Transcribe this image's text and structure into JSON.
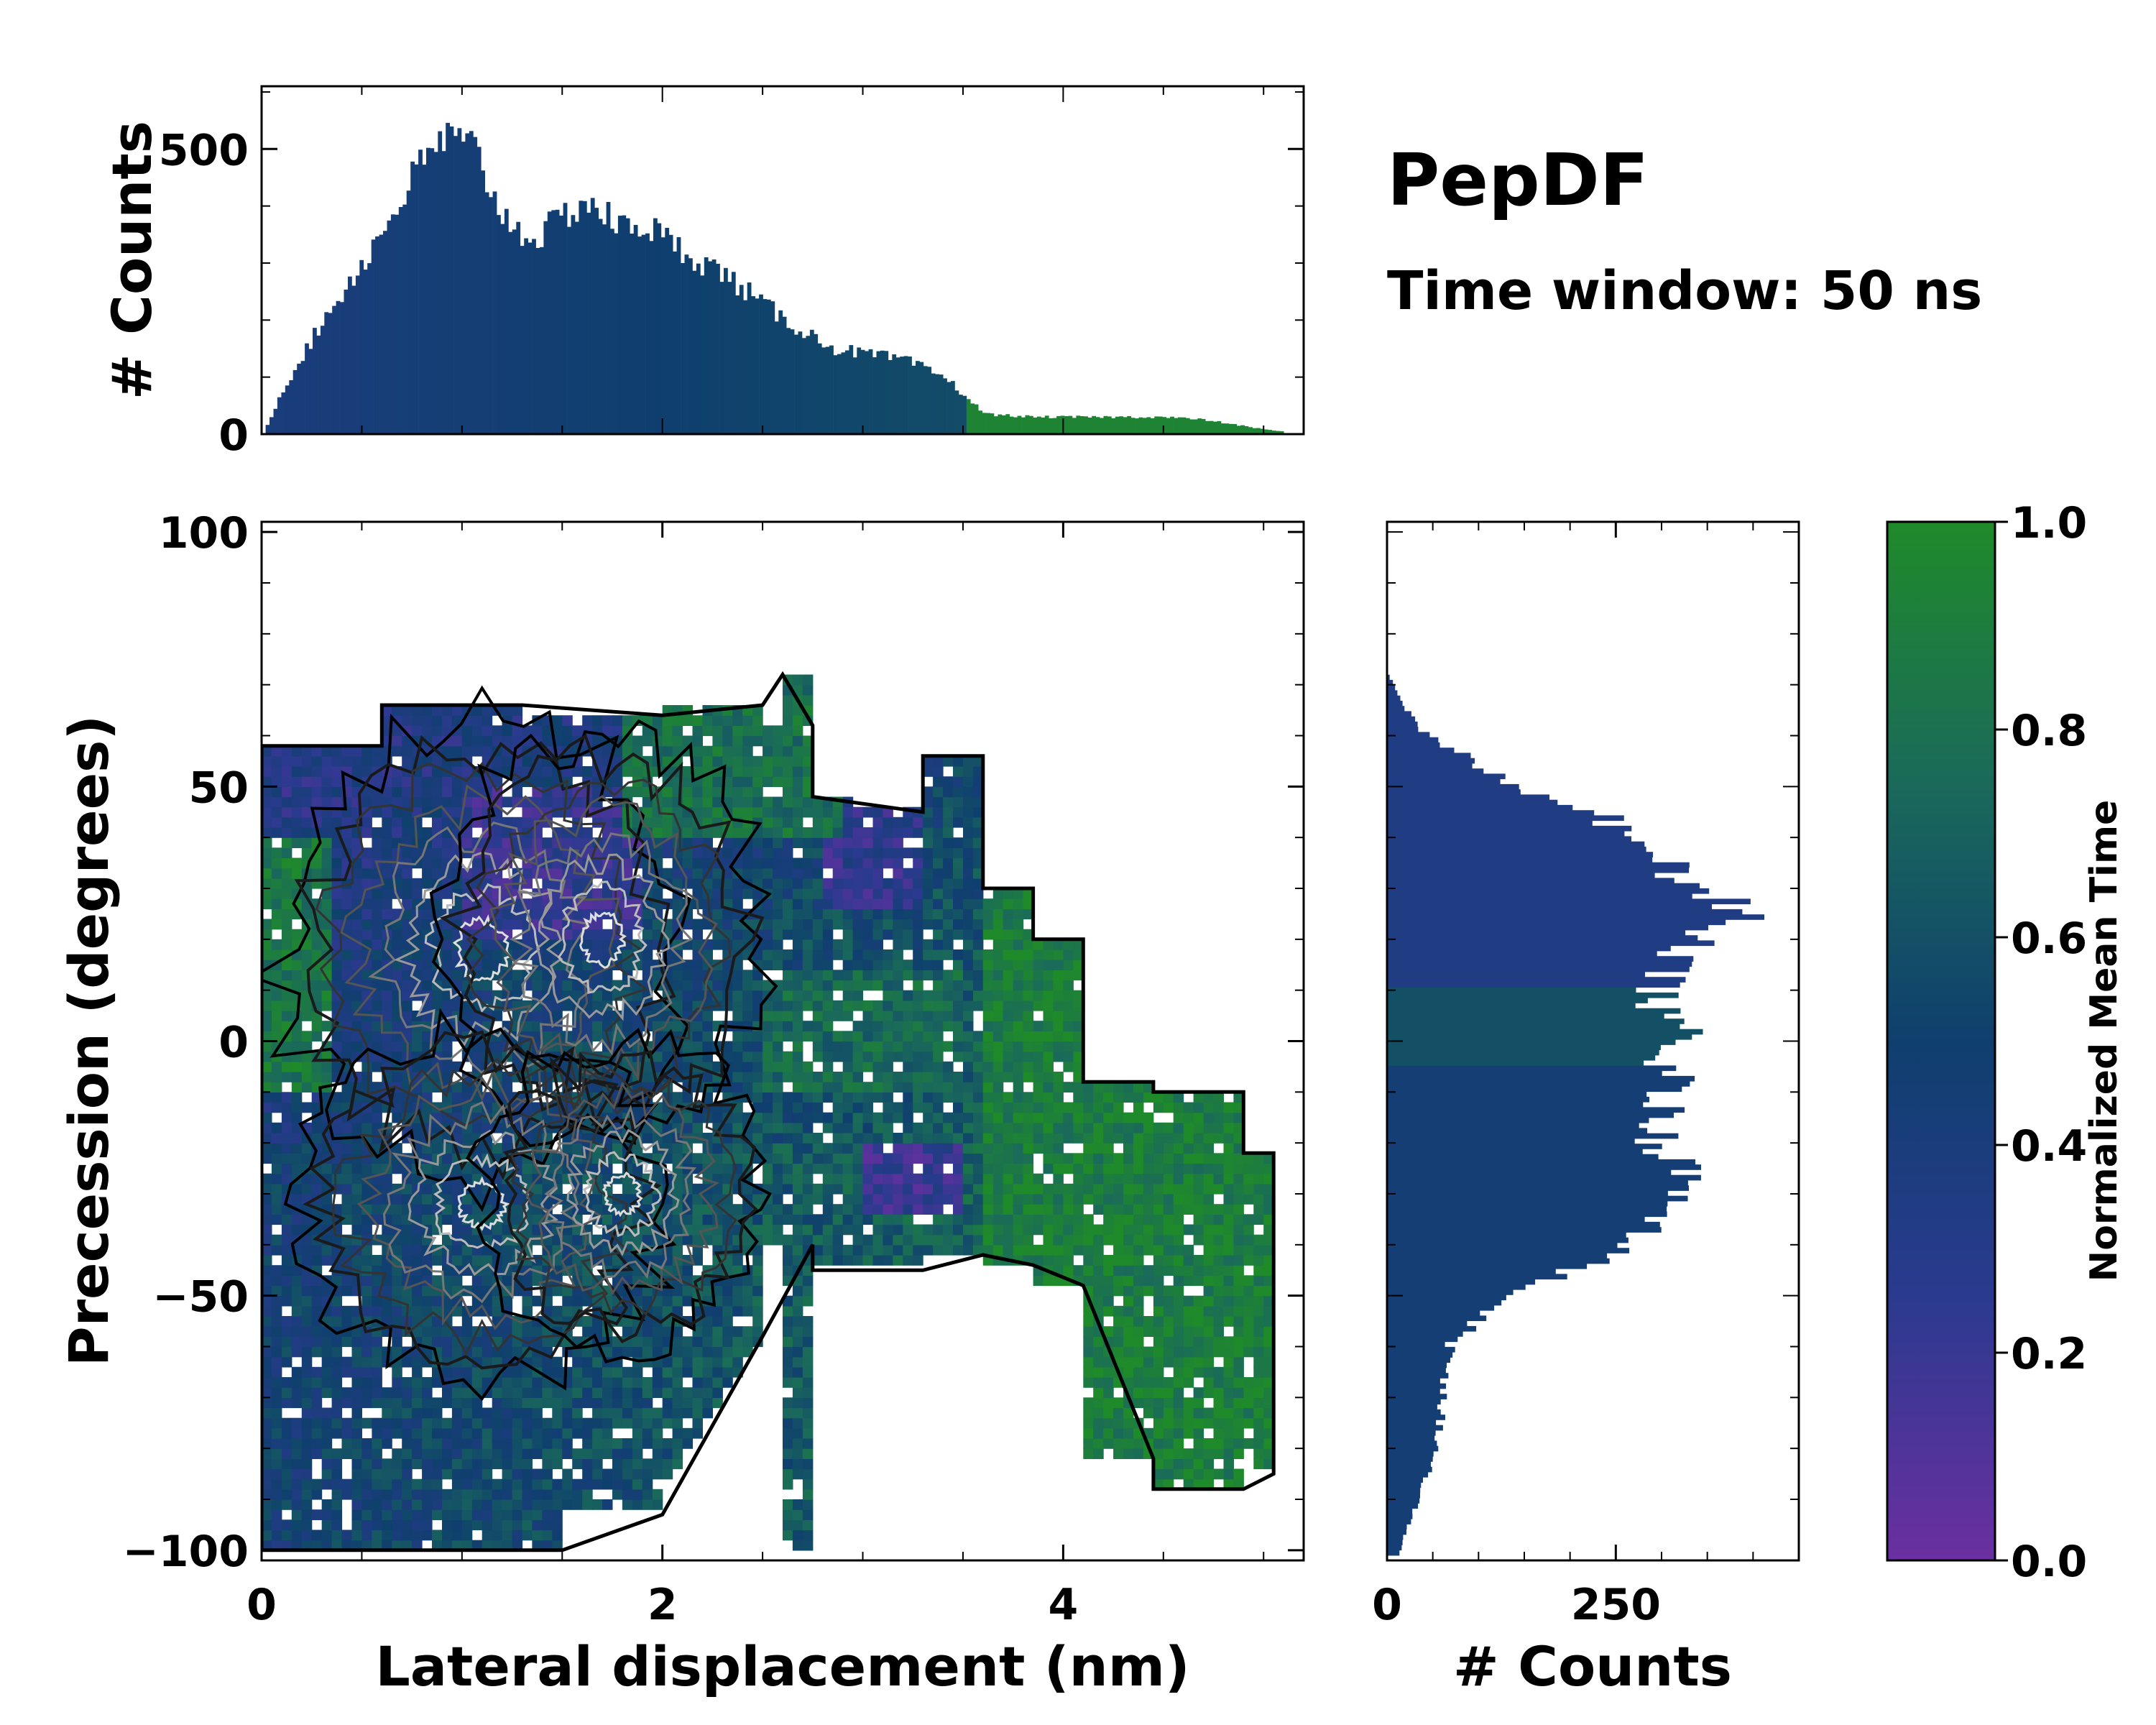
{
  "chart_data": {
    "type": "heatmap",
    "title": "PepDF",
    "subtitle": "Time window: 50 ns",
    "main": {
      "xlabel": "Lateral displacement (nm)",
      "ylabel": "Precession (degrees)",
      "xlim": [
        0,
        5.2
      ],
      "ylim": [
        -102,
        102
      ],
      "xticks": [
        0,
        2,
        4
      ],
      "xtick_labels": [
        "0",
        "2",
        "4"
      ],
      "yticks": [
        -100,
        -50,
        0,
        50,
        100
      ],
      "ytick_labels": [
        "−100",
        "−50",
        "0",
        "50",
        "100"
      ],
      "colorscale": {
        "label": "Normalized Mean Time",
        "range": [
          0.0,
          1.0
        ],
        "ticks": [
          0.0,
          0.2,
          0.4,
          0.6,
          0.8,
          1.0
        ],
        "tick_labels": [
          "0.0",
          "0.2",
          "0.4",
          "0.6",
          "0.8",
          "1.0"
        ],
        "colors": [
          "#6b2fa0",
          "#2b3a8f",
          "#0f3f6e",
          "#1a6a5a",
          "#1f8a2a"
        ]
      },
      "contour_color_outer": "#000000",
      "contour_color_inner": "#dddddd"
    },
    "top_histogram": {
      "ylabel": "# Counts",
      "ylim": [
        0,
        610
      ],
      "yticks": [
        0,
        500
      ],
      "ytick_labels": [
        "0",
        "500"
      ],
      "x_profile": [
        [
          0.0,
          0
        ],
        [
          0.1,
          80
        ],
        [
          0.3,
          200
        ],
        [
          0.55,
          330
        ],
        [
          0.8,
          480
        ],
        [
          0.9,
          520
        ],
        [
          1.05,
          500
        ],
        [
          1.2,
          380
        ],
        [
          1.35,
          340
        ],
        [
          1.6,
          410
        ],
        [
          1.8,
          360
        ],
        [
          1.9,
          370
        ],
        [
          2.05,
          330
        ],
        [
          2.3,
          280
        ],
        [
          2.6,
          200
        ],
        [
          2.85,
          150
        ],
        [
          3.2,
          130
        ],
        [
          3.4,
          100
        ],
        [
          3.6,
          35
        ],
        [
          3.85,
          30
        ],
        [
          4.2,
          30
        ],
        [
          4.5,
          30
        ],
        [
          4.7,
          25
        ],
        [
          5.0,
          8
        ],
        [
          5.2,
          0
        ]
      ]
    },
    "right_histogram": {
      "xlabel": "# Counts",
      "xlim": [
        0,
        450
      ],
      "xticks": [
        0,
        250
      ],
      "xtick_labels": [
        "0",
        "250"
      ],
      "y_profile": [
        [
          -100,
          15
        ],
        [
          -90,
          35
        ],
        [
          -80,
          55
        ],
        [
          -70,
          60
        ],
        [
          -60,
          70
        ],
        [
          -52,
          120
        ],
        [
          -45,
          210
        ],
        [
          -40,
          270
        ],
        [
          -35,
          310
        ],
        [
          -28,
          330
        ],
        [
          -20,
          300
        ],
        [
          -12,
          310
        ],
        [
          -5,
          310
        ],
        [
          0,
          330
        ],
        [
          5,
          300
        ],
        [
          12,
          300
        ],
        [
          20,
          330
        ],
        [
          25,
          400
        ],
        [
          30,
          340
        ],
        [
          35,
          300
        ],
        [
          40,
          270
        ],
        [
          45,
          220
        ],
        [
          50,
          130
        ],
        [
          55,
          90
        ],
        [
          60,
          40
        ],
        [
          65,
          20
        ],
        [
          72,
          0
        ]
      ]
    }
  }
}
